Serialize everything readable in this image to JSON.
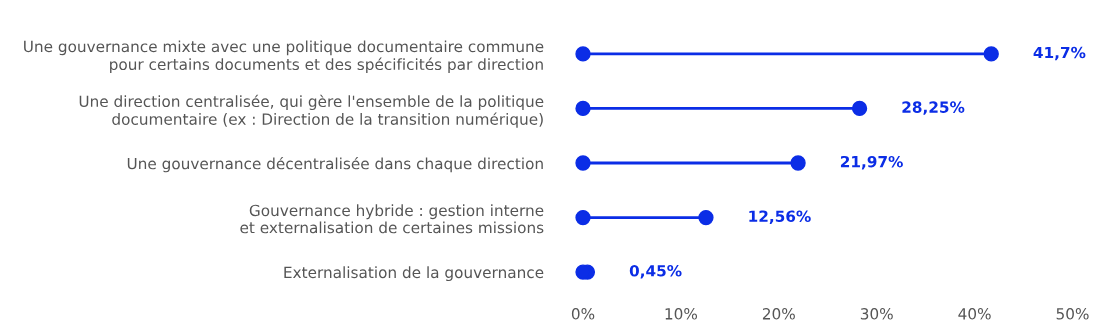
{
  "chart_data": {
    "type": "lollipop",
    "orientation": "horizontal",
    "marker": "circle",
    "categories": [
      "Une gouvernance mixte avec une politique documentaire commune\npour certains documents et des spécificités par direction",
      "Une direction centralisée, qui gère l'ensemble de la politique\ndocumentaire (ex : Direction de la transition numérique)",
      "Une gouvernance décentralisée dans chaque direction",
      "Gouvernance hybride : gestion interne\net externalisation de certaines missions",
      "Externalisation de la gouvernance"
    ],
    "series": [
      {
        "color": "#0b2de6",
        "values": [
          41.7,
          28.25,
          21.97,
          12.56,
          0.45
        ],
        "value_labels": [
          "41,7%",
          "28,25%",
          "21,97%",
          "12,56%",
          "0,45%"
        ]
      },
      {
        "type": "scatter",
        "color": "#0b2de6",
        "values": [
          0,
          0,
          0,
          0,
          0
        ]
      }
    ],
    "xlim": [
      0,
      50
    ],
    "xticks": [
      {
        "value": 0,
        "label": "0%"
      },
      {
        "value": 10,
        "label": "10%"
      },
      {
        "value": 20,
        "label": "20%"
      },
      {
        "value": 30,
        "label": "30%"
      },
      {
        "value": 40,
        "label": "40%"
      },
      {
        "value": 50,
        "label": "50%"
      }
    ],
    "grid": false,
    "legend": false
  }
}
